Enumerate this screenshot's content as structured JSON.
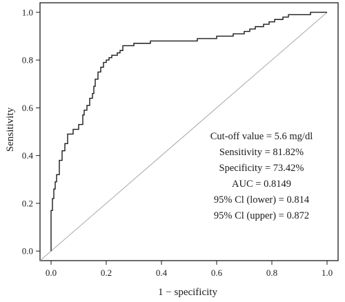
{
  "chart_data": {
    "type": "line",
    "xlabel": "1 − specificity",
    "ylabel": "Sensitivity",
    "xlim": [
      -0.04,
      1.04
    ],
    "ylim": [
      -0.04,
      1.04
    ],
    "xticks": [
      0.0,
      0.2,
      0.4,
      0.6,
      0.8,
      1.0
    ],
    "yticks": [
      0.0,
      0.2,
      0.4,
      0.6,
      0.8,
      1.0
    ],
    "xtick_labels": [
      "0.0",
      "0.2",
      "0.4",
      "0.6",
      "0.8",
      "1.0"
    ],
    "ytick_labels": [
      "0.0",
      "0.2",
      "0.4",
      "0.6",
      "0.8",
      "1.0"
    ],
    "grid": false,
    "colors": {
      "curve": "#1a1a1a",
      "diagonal": "#a6a6a6",
      "frame": "#1a1a1a"
    },
    "reference_line": {
      "from": [
        0,
        0
      ],
      "to": [
        1,
        1
      ]
    },
    "series": [
      {
        "x": [
          0.0,
          0.0,
          0.005,
          0.005,
          0.01,
          0.01,
          0.015,
          0.015,
          0.02,
          0.02,
          0.03,
          0.03,
          0.04,
          0.04,
          0.05,
          0.05,
          0.06,
          0.06,
          0.07,
          0.07,
          0.08,
          0.08,
          0.1,
          0.1,
          0.115,
          0.115,
          0.12,
          0.12,
          0.13,
          0.13,
          0.14,
          0.14,
          0.15,
          0.15,
          0.155,
          0.155,
          0.16,
          0.16,
          0.17,
          0.17,
          0.18,
          0.18,
          0.19,
          0.19,
          0.2,
          0.2,
          0.21,
          0.21,
          0.22,
          0.22,
          0.23,
          0.23,
          0.24,
          0.24,
          0.25,
          0.25,
          0.26,
          0.26,
          0.3,
          0.3,
          0.36,
          0.36,
          0.43,
          0.43,
          0.53,
          0.53,
          0.6,
          0.6,
          0.66,
          0.66,
          0.7,
          0.7,
          0.72,
          0.72,
          0.74,
          0.74,
          0.77,
          0.77,
          0.79,
          0.79,
          0.81,
          0.81,
          0.84,
          0.84,
          0.86,
          0.86,
          0.94,
          0.94,
          1.0
        ],
        "y": [
          0.0,
          0.17,
          0.17,
          0.22,
          0.22,
          0.26,
          0.26,
          0.29,
          0.29,
          0.32,
          0.32,
          0.38,
          0.38,
          0.42,
          0.42,
          0.45,
          0.45,
          0.49,
          0.49,
          0.49,
          0.49,
          0.51,
          0.51,
          0.53,
          0.53,
          0.57,
          0.57,
          0.59,
          0.59,
          0.61,
          0.61,
          0.64,
          0.64,
          0.66,
          0.66,
          0.69,
          0.69,
          0.72,
          0.72,
          0.75,
          0.75,
          0.77,
          0.77,
          0.79,
          0.79,
          0.8,
          0.8,
          0.81,
          0.81,
          0.82,
          0.82,
          0.82,
          0.82,
          0.83,
          0.83,
          0.84,
          0.84,
          0.86,
          0.86,
          0.87,
          0.87,
          0.88,
          0.88,
          0.88,
          0.88,
          0.89,
          0.89,
          0.9,
          0.9,
          0.91,
          0.91,
          0.92,
          0.92,
          0.93,
          0.93,
          0.94,
          0.94,
          0.95,
          0.95,
          0.96,
          0.96,
          0.97,
          0.97,
          0.98,
          0.98,
          0.99,
          0.99,
          1.0,
          1.0
        ]
      }
    ],
    "annotations": [
      "Cut-off value = 5.6 mg/dl",
      "Sensitivity = 81.82%",
      "Specificity = 73.42%",
      "AUC = 0.8149",
      "95% Cl (lower) = 0.814",
      "95% Cl (upper) = 0.872"
    ]
  }
}
